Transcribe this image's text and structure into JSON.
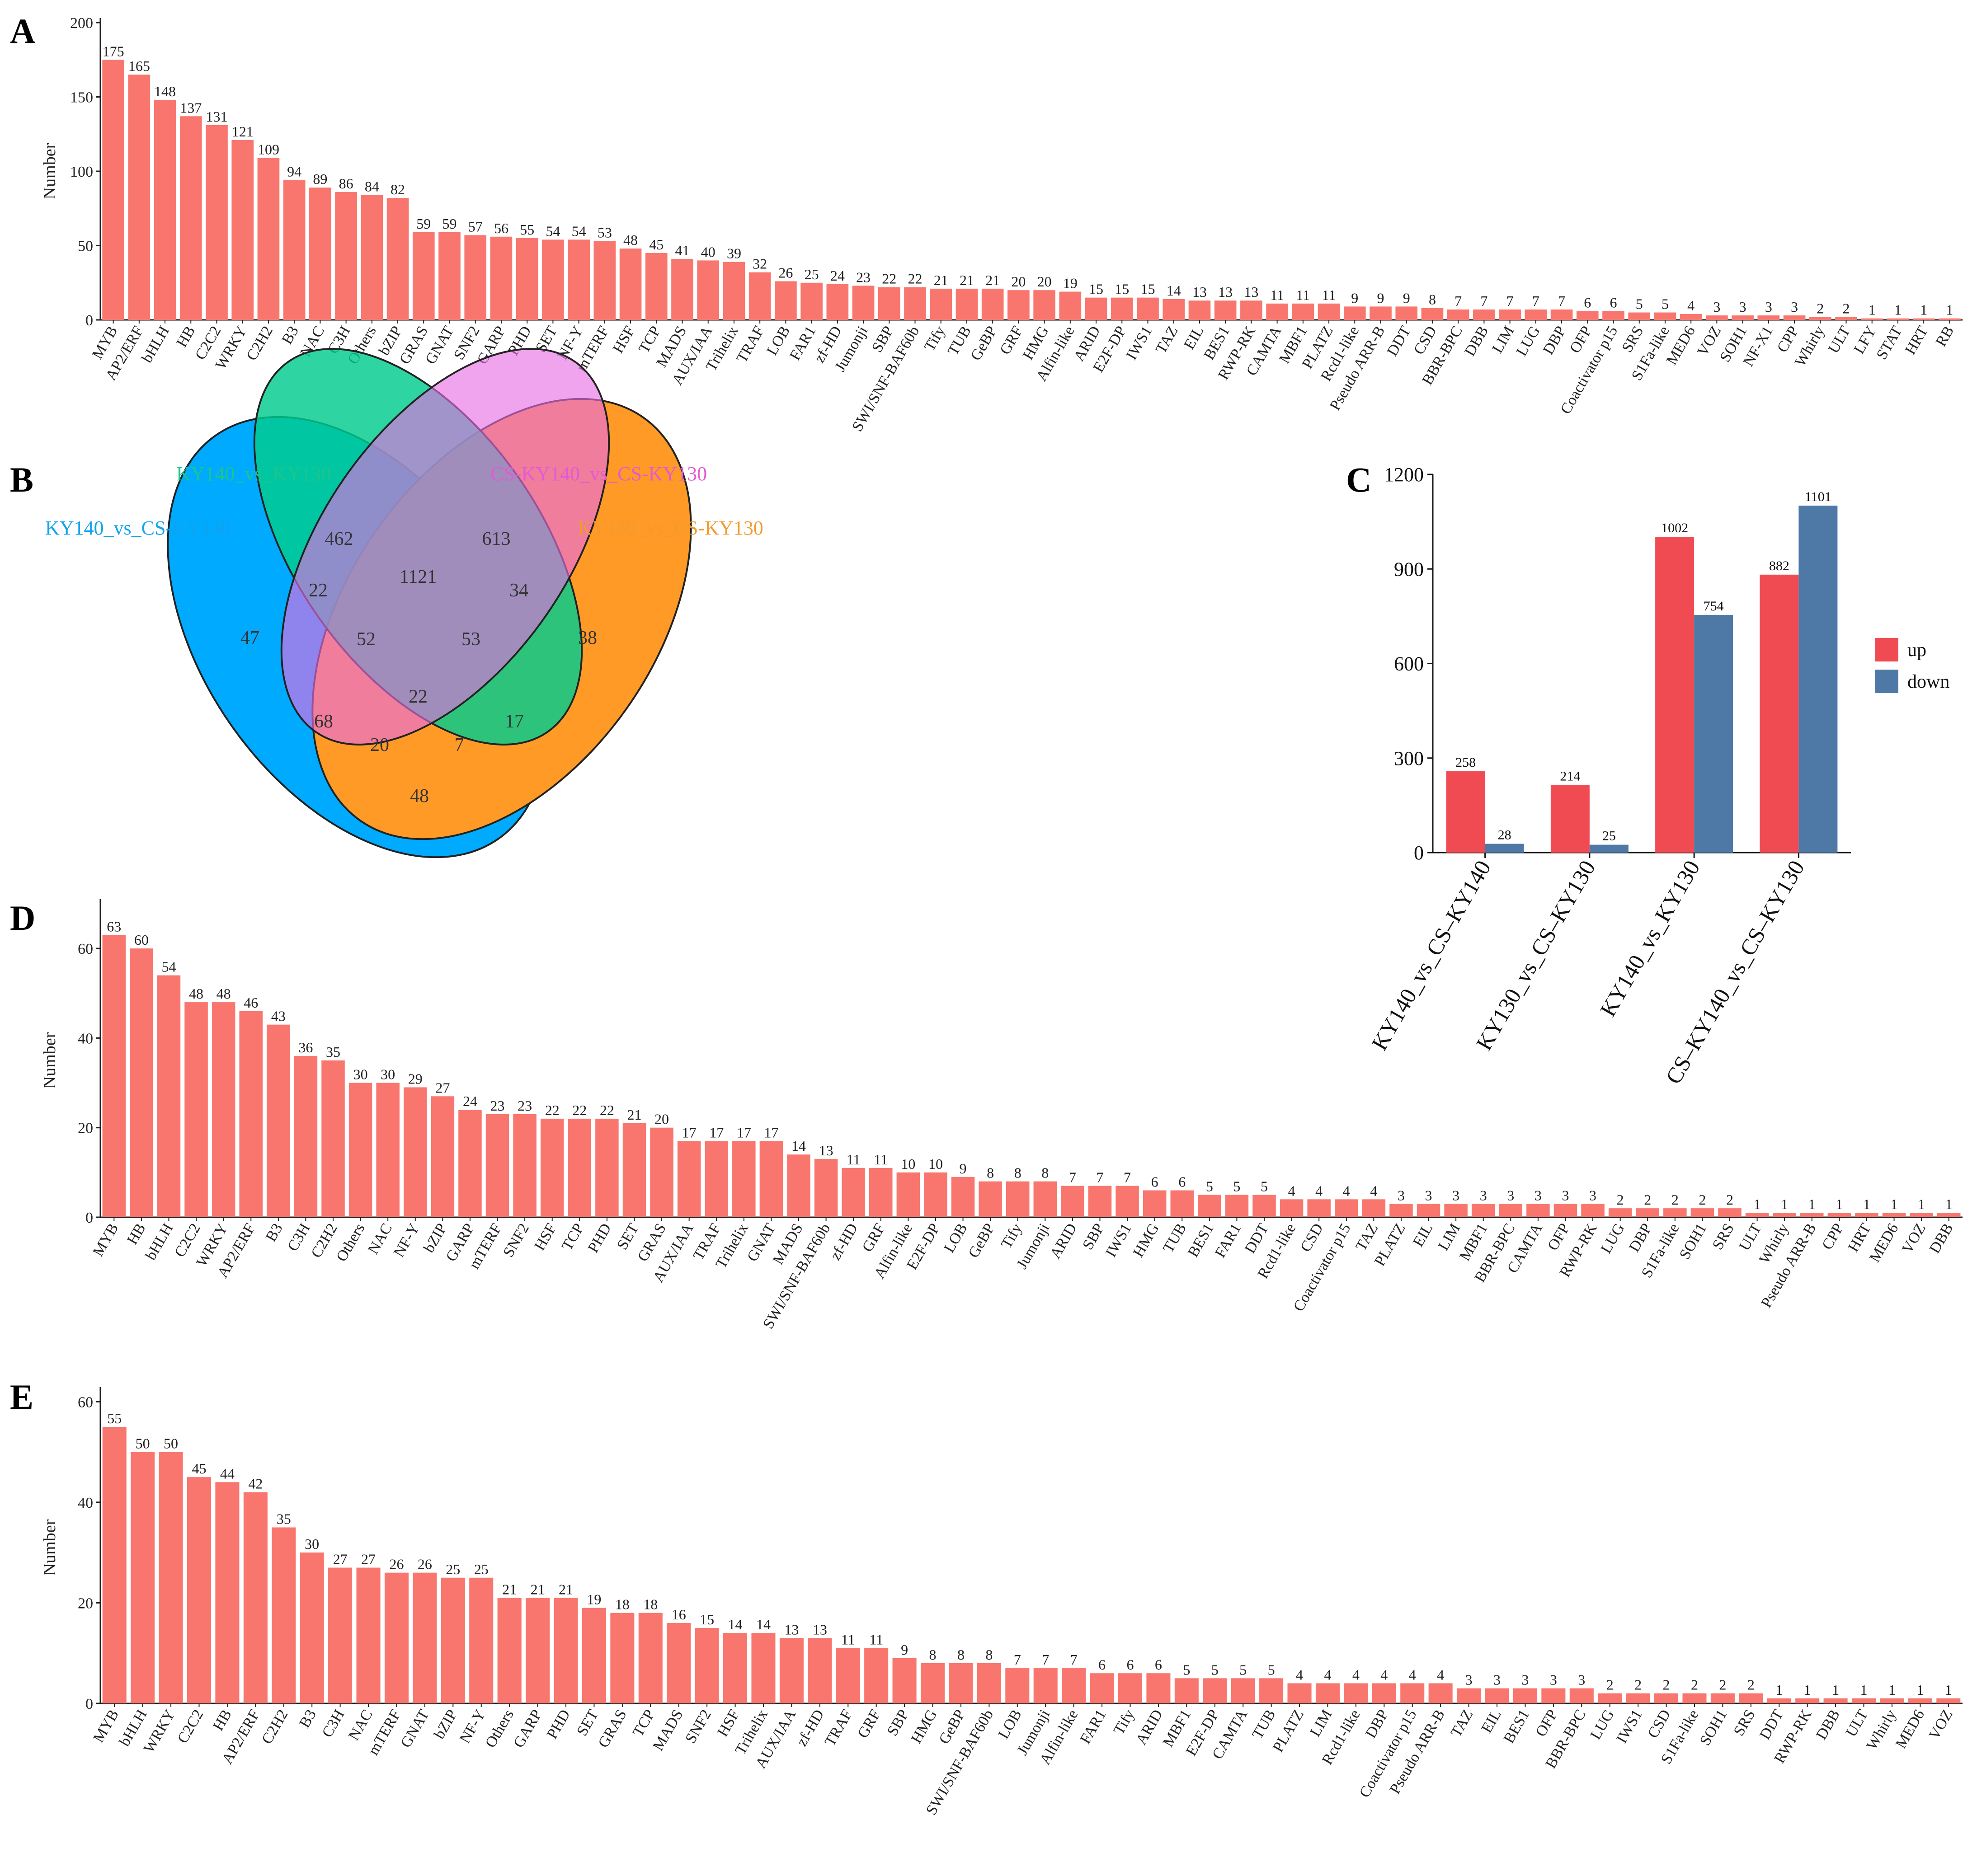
{
  "panels": {
    "a": "A",
    "b": "B",
    "c": "C",
    "d": "D",
    "e": "E"
  },
  "colors": {
    "bar": "#F8766D",
    "up": "#F04A53",
    "down": "#4E79A7",
    "venn_blue": "#00AAFF",
    "venn_green": "#00CC8E",
    "venn_pink": "#E66CE3",
    "venn_orange": "#FF9A26"
  },
  "chart_data": [
    {
      "id": "A",
      "type": "bar",
      "ylabel": "Number",
      "ylim": [
        0,
        200
      ],
      "yticks": [
        0,
        50,
        100,
        150,
        200
      ],
      "categories": [
        "MYB",
        "AP2/ERF",
        "bHLH",
        "HB",
        "C2C2",
        "WRKY",
        "C2H2",
        "B3",
        "NAC",
        "C3H",
        "Others",
        "bZIP",
        "GRAS",
        "GNAT",
        "SNF2",
        "GARP",
        "PHD",
        "SET",
        "NF-Y",
        "mTERF",
        "HSF",
        "TCP",
        "MADS",
        "AUX/IAA",
        "Trihelix",
        "TRAF",
        "LOB",
        "FAR1",
        "zf-HD",
        "Jumonji",
        "SBP",
        "SWI/SNF-BAF60b",
        "Tify",
        "TUB",
        "GeBP",
        "GRF",
        "HMG",
        "Alfin-like",
        "ARID",
        "E2F-DP",
        "IWS1",
        "TAZ",
        "EIL",
        "BES1",
        "RWP-RK",
        "CAMTA",
        "MBF1",
        "PLATZ",
        "Rcd1-like",
        "Pseudo ARR-B",
        "DDT",
        "CSD",
        "BBR-BPC",
        "DBB",
        "LIM",
        "LUG",
        "DBP",
        "OFP",
        "Coactivator p15",
        "SRS",
        "S1Fa-like",
        "MED6",
        "VOZ",
        "SOH1",
        "NF-X1",
        "CPP",
        "Whirly",
        "ULT",
        "LFY",
        "STAT",
        "HRT",
        "RB"
      ],
      "values": [
        175,
        165,
        148,
        137,
        131,
        121,
        109,
        94,
        89,
        86,
        84,
        82,
        59,
        59,
        57,
        56,
        55,
        54,
        54,
        53,
        48,
        45,
        41,
        40,
        39,
        32,
        26,
        25,
        24,
        23,
        22,
        22,
        21,
        21,
        21,
        20,
        20,
        19,
        15,
        15,
        15,
        14,
        13,
        13,
        13,
        11,
        11,
        11,
        9,
        9,
        9,
        8,
        7,
        7,
        7,
        7,
        7,
        6,
        6,
        5,
        5,
        4,
        3,
        3,
        3,
        3,
        2,
        2,
        1,
        1,
        1,
        1
      ]
    },
    {
      "id": "B",
      "type": "venn",
      "sets": [
        "KY140_vs_CS-KY140",
        "KY140_vs_KY130",
        "CS-KY140_vs_CS-KY130",
        "KY130_vs_CS-KY130"
      ],
      "regions": {
        "only_1": 47,
        "only_2": 462,
        "only_3": 613,
        "only_4": 38,
        "s12": 22,
        "s23": 1121,
        "s34": 34,
        "s123": 52,
        "s234": 53,
        "s1234": 22,
        "s13": 68,
        "s24": 17,
        "s134": 20,
        "s124": 7,
        "s14": 48
      }
    },
    {
      "id": "C",
      "type": "bar",
      "ylim": [
        0,
        1200
      ],
      "yticks": [
        0,
        300,
        600,
        900,
        1200
      ],
      "categories": [
        "KY140_vs_CS–KY140",
        "KY130_vs_CS–KY130",
        "KY140_vs_KY130",
        "CS–KY140_vs_CS–KY130"
      ],
      "series": [
        {
          "name": "up",
          "values": [
            258,
            214,
            1002,
            882
          ]
        },
        {
          "name": "down",
          "values": [
            28,
            25,
            754,
            1101
          ]
        }
      ],
      "legend": "right"
    },
    {
      "id": "D",
      "type": "bar",
      "ylabel": "Number",
      "ylim": [
        0,
        70
      ],
      "yticks": [
        0,
        20,
        40,
        60
      ],
      "categories": [
        "MYB",
        "HB",
        "bHLH",
        "C2C2",
        "WRKY",
        "AP2/ERF",
        "B3",
        "C3H",
        "C2H2",
        "Others",
        "NAC",
        "NF-Y",
        "bZIP",
        "GARP",
        "mTERF",
        "SNF2",
        "HSF",
        "TCP",
        "PHD",
        "SET",
        "GRAS",
        "AUX/IAA",
        "TRAF",
        "Trihelix",
        "GNAT",
        "MADS",
        "SWI/SNF-BAF60b",
        "zf-HD",
        "GRF",
        "Alfin-like",
        "E2F-DP",
        "LOB",
        "GeBP",
        "Tify",
        "Jumonji",
        "ARID",
        "SBP",
        "IWS1",
        "HMG",
        "TUB",
        "BES1",
        "FAR1",
        "DDT",
        "Rcd1-like",
        "CSD",
        "Coactivator p15",
        "TAZ",
        "PLATZ",
        "EIL",
        "LIM",
        "MBF1",
        "BBR-BPC",
        "CAMTA",
        "OFP",
        "RWP-RK",
        "LUG",
        "DBP",
        "S1Fa-like",
        "SOH1",
        "SRS",
        "ULT",
        "Whirly",
        "Pseudo ARR-B",
        "CPP",
        "HRT",
        "MED6",
        "VOZ",
        "DBB"
      ],
      "values": [
        63,
        60,
        54,
        48,
        48,
        46,
        43,
        36,
        35,
        30,
        30,
        29,
        27,
        24,
        23,
        23,
        22,
        22,
        22,
        21,
        20,
        17,
        17,
        17,
        17,
        14,
        13,
        11,
        11,
        10,
        10,
        9,
        8,
        8,
        8,
        7,
        7,
        7,
        6,
        6,
        5,
        5,
        5,
        4,
        4,
        4,
        4,
        3,
        3,
        3,
        3,
        3,
        3,
        3,
        3,
        2,
        2,
        2,
        2,
        2,
        1,
        1,
        1,
        1,
        1,
        1,
        1,
        1
      ]
    },
    {
      "id": "E",
      "type": "bar",
      "ylabel": "Number",
      "ylim": [
        0,
        62
      ],
      "yticks": [
        0,
        20,
        40,
        60
      ],
      "categories": [
        "MYB",
        "bHLH",
        "WRKY",
        "C2C2",
        "HB",
        "AP2/ERF",
        "C2H2",
        "B3",
        "C3H",
        "NAC",
        "mTERF",
        "GNAT",
        "bZIP",
        "NF-Y",
        "Others",
        "GARP",
        "PHD",
        "SET",
        "GRAS",
        "TCP",
        "MADS",
        "SNF2",
        "HSF",
        "Trihelix",
        "AUX/IAA",
        "zf-HD",
        "TRAF",
        "GRF",
        "SBP",
        "HMG",
        "GeBP",
        "SWI/SNF-BAF60b",
        "LOB",
        "Jumonji",
        "Alfin-like",
        "FAR1",
        "Tify",
        "ARID",
        "MBF1",
        "E2F-DP",
        "CAMTA",
        "TUB",
        "PLATZ",
        "LIM",
        "Rcd1-like",
        "DBP",
        "Coactivator p15",
        "Pseudo ARR-B",
        "TAZ",
        "EIL",
        "BES1",
        "OFP",
        "BBR-BPC",
        "LUG",
        "IWS1",
        "CSD",
        "S1Fa-like",
        "SOH1",
        "SRS",
        "DDT",
        "RWP-RK",
        "DBB",
        "ULT",
        "Whirly",
        "MED6",
        "VOZ"
      ],
      "values": [
        55,
        50,
        50,
        45,
        44,
        42,
        35,
        30,
        27,
        27,
        26,
        26,
        25,
        25,
        21,
        21,
        21,
        19,
        18,
        18,
        16,
        15,
        14,
        14,
        13,
        13,
        11,
        11,
        9,
        8,
        8,
        8,
        7,
        7,
        7,
        6,
        6,
        6,
        5,
        5,
        5,
        5,
        4,
        4,
        4,
        4,
        4,
        4,
        3,
        3,
        3,
        3,
        3,
        2,
        2,
        2,
        2,
        2,
        2,
        1,
        1,
        1,
        1,
        1,
        1,
        1
      ]
    }
  ]
}
